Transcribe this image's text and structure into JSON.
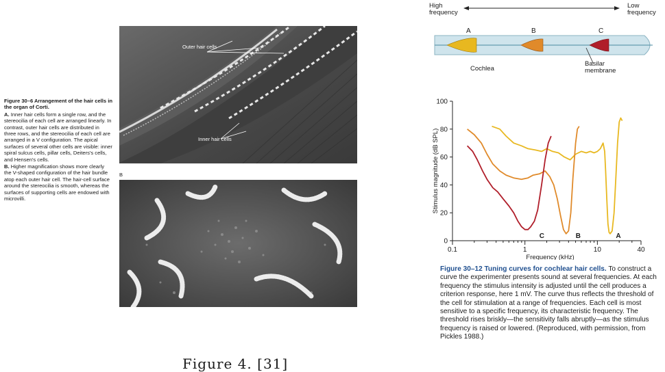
{
  "figure_30_6": {
    "caption_title": "Figure 30–6  Arrangement of the hair cells in the organ of Corti.",
    "part_a_label": "A.",
    "part_a_text": "Inner hair cells form a single row, and the stereocilia of each cell are arranged linearly. In contrast, outer hair cells are distributed in three rows, and the stereocilia of each cell are arranged in a V configuration. The apical surfaces of several other cells are visible: inner spiral sulcus cells, pillar cells, Deiters's cells, and Hensen's cells.",
    "part_b_label": "B.",
    "part_b_text": "Higher magnification shows more clearly the V-shaped configuration of the hair bundle atop each outer hair cell. The hair-cell surface around the stereocilia is smooth, whereas the surfaces of supporting cells are endowed with microvilli.",
    "panel_b_letter": "B",
    "outer_label": "Outer\nhair cells",
    "inner_label": "Inner\nhair cells"
  },
  "figure_4_caption": "Figure 4. [31]",
  "cochlea": {
    "high_frequency": "High\nfrequency",
    "low_frequency": "Low\nfrequency",
    "position_labels": [
      "A",
      "B",
      "C"
    ],
    "cochlea_label": "Cochlea",
    "basilar_label": "Basilar\nmembrane",
    "colors": {
      "A": "#e8b820",
      "B": "#e08a2a",
      "C": "#b01e2a"
    }
  },
  "chart_data": {
    "type": "line",
    "xlabel": "Frequency (kHz)",
    "ylabel": "Stimulus magnitude (dB SPL)",
    "x_scale": "log",
    "xlim": [
      0.1,
      40
    ],
    "ylim": [
      0,
      100
    ],
    "x_ticks": [
      0.1,
      1,
      10,
      40
    ],
    "y_ticks": [
      0,
      20,
      40,
      60,
      80,
      100
    ],
    "grid": false,
    "series": [
      {
        "name": "A",
        "color": "#e8b820",
        "x": [
          0.35,
          0.45,
          0.55,
          0.7,
          0.9,
          1.1,
          1.4,
          1.7,
          2.0,
          2.4,
          2.9,
          3.5,
          4.2,
          5,
          6,
          7,
          8,
          9,
          10,
          11,
          12,
          12.6,
          13,
          13.5,
          14,
          14.5,
          15,
          16,
          17,
          18,
          19,
          20,
          21,
          22
        ],
        "y": [
          82,
          80,
          75,
          70,
          68,
          66,
          65,
          64,
          66,
          64,
          63,
          60,
          58,
          62,
          64,
          63,
          64,
          63,
          64,
          66,
          70,
          64,
          50,
          30,
          12,
          6,
          5,
          7,
          20,
          45,
          70,
          85,
          88,
          86
        ]
      },
      {
        "name": "B",
        "color": "#e08a2a",
        "x": [
          0.16,
          0.2,
          0.25,
          0.3,
          0.36,
          0.45,
          0.55,
          0.7,
          0.9,
          1.1,
          1.3,
          1.6,
          1.9,
          2.2,
          2.5,
          2.8,
          3.1,
          3.4,
          3.7,
          4.0,
          4.3,
          4.6,
          5.0,
          5.3,
          5.6
        ],
        "y": [
          80,
          76,
          70,
          62,
          55,
          50,
          47,
          45,
          44,
          45,
          47,
          48,
          50,
          46,
          40,
          30,
          18,
          8,
          5,
          7,
          20,
          45,
          70,
          80,
          82
        ]
      },
      {
        "name": "C",
        "color": "#b01e2a",
        "x": [
          0.16,
          0.19,
          0.22,
          0.26,
          0.3,
          0.36,
          0.42,
          0.5,
          0.6,
          0.7,
          0.8,
          0.9,
          1.0,
          1.1,
          1.2,
          1.35,
          1.5,
          1.7,
          1.9,
          2.1,
          2.3
        ],
        "y": [
          68,
          64,
          58,
          50,
          44,
          38,
          35,
          30,
          25,
          20,
          14,
          10,
          8,
          8,
          10,
          14,
          22,
          40,
          58,
          70,
          75
        ]
      }
    ],
    "annotations": [
      "A",
      "B",
      "C"
    ]
  },
  "figure_30_12": {
    "title": "Figure 30–12  Tuning curves for cochlear hair cells.",
    "text": "To construct a curve the experimenter presents sound at several frequencies. At each frequency the stimulus intensity is adjusted until the cell produces a criterion response, here 1 mV. The curve thus reflects the threshold of the cell for stimulation at a range of frequencies. Each cell is most sensitive to a specific frequency, its characteristic frequency. The threshold rises briskly—the sensitivity falls abruptly—as the stimulus frequency is raised or lowered. (Reproduced, with permission, from Pickles 1988.)"
  }
}
